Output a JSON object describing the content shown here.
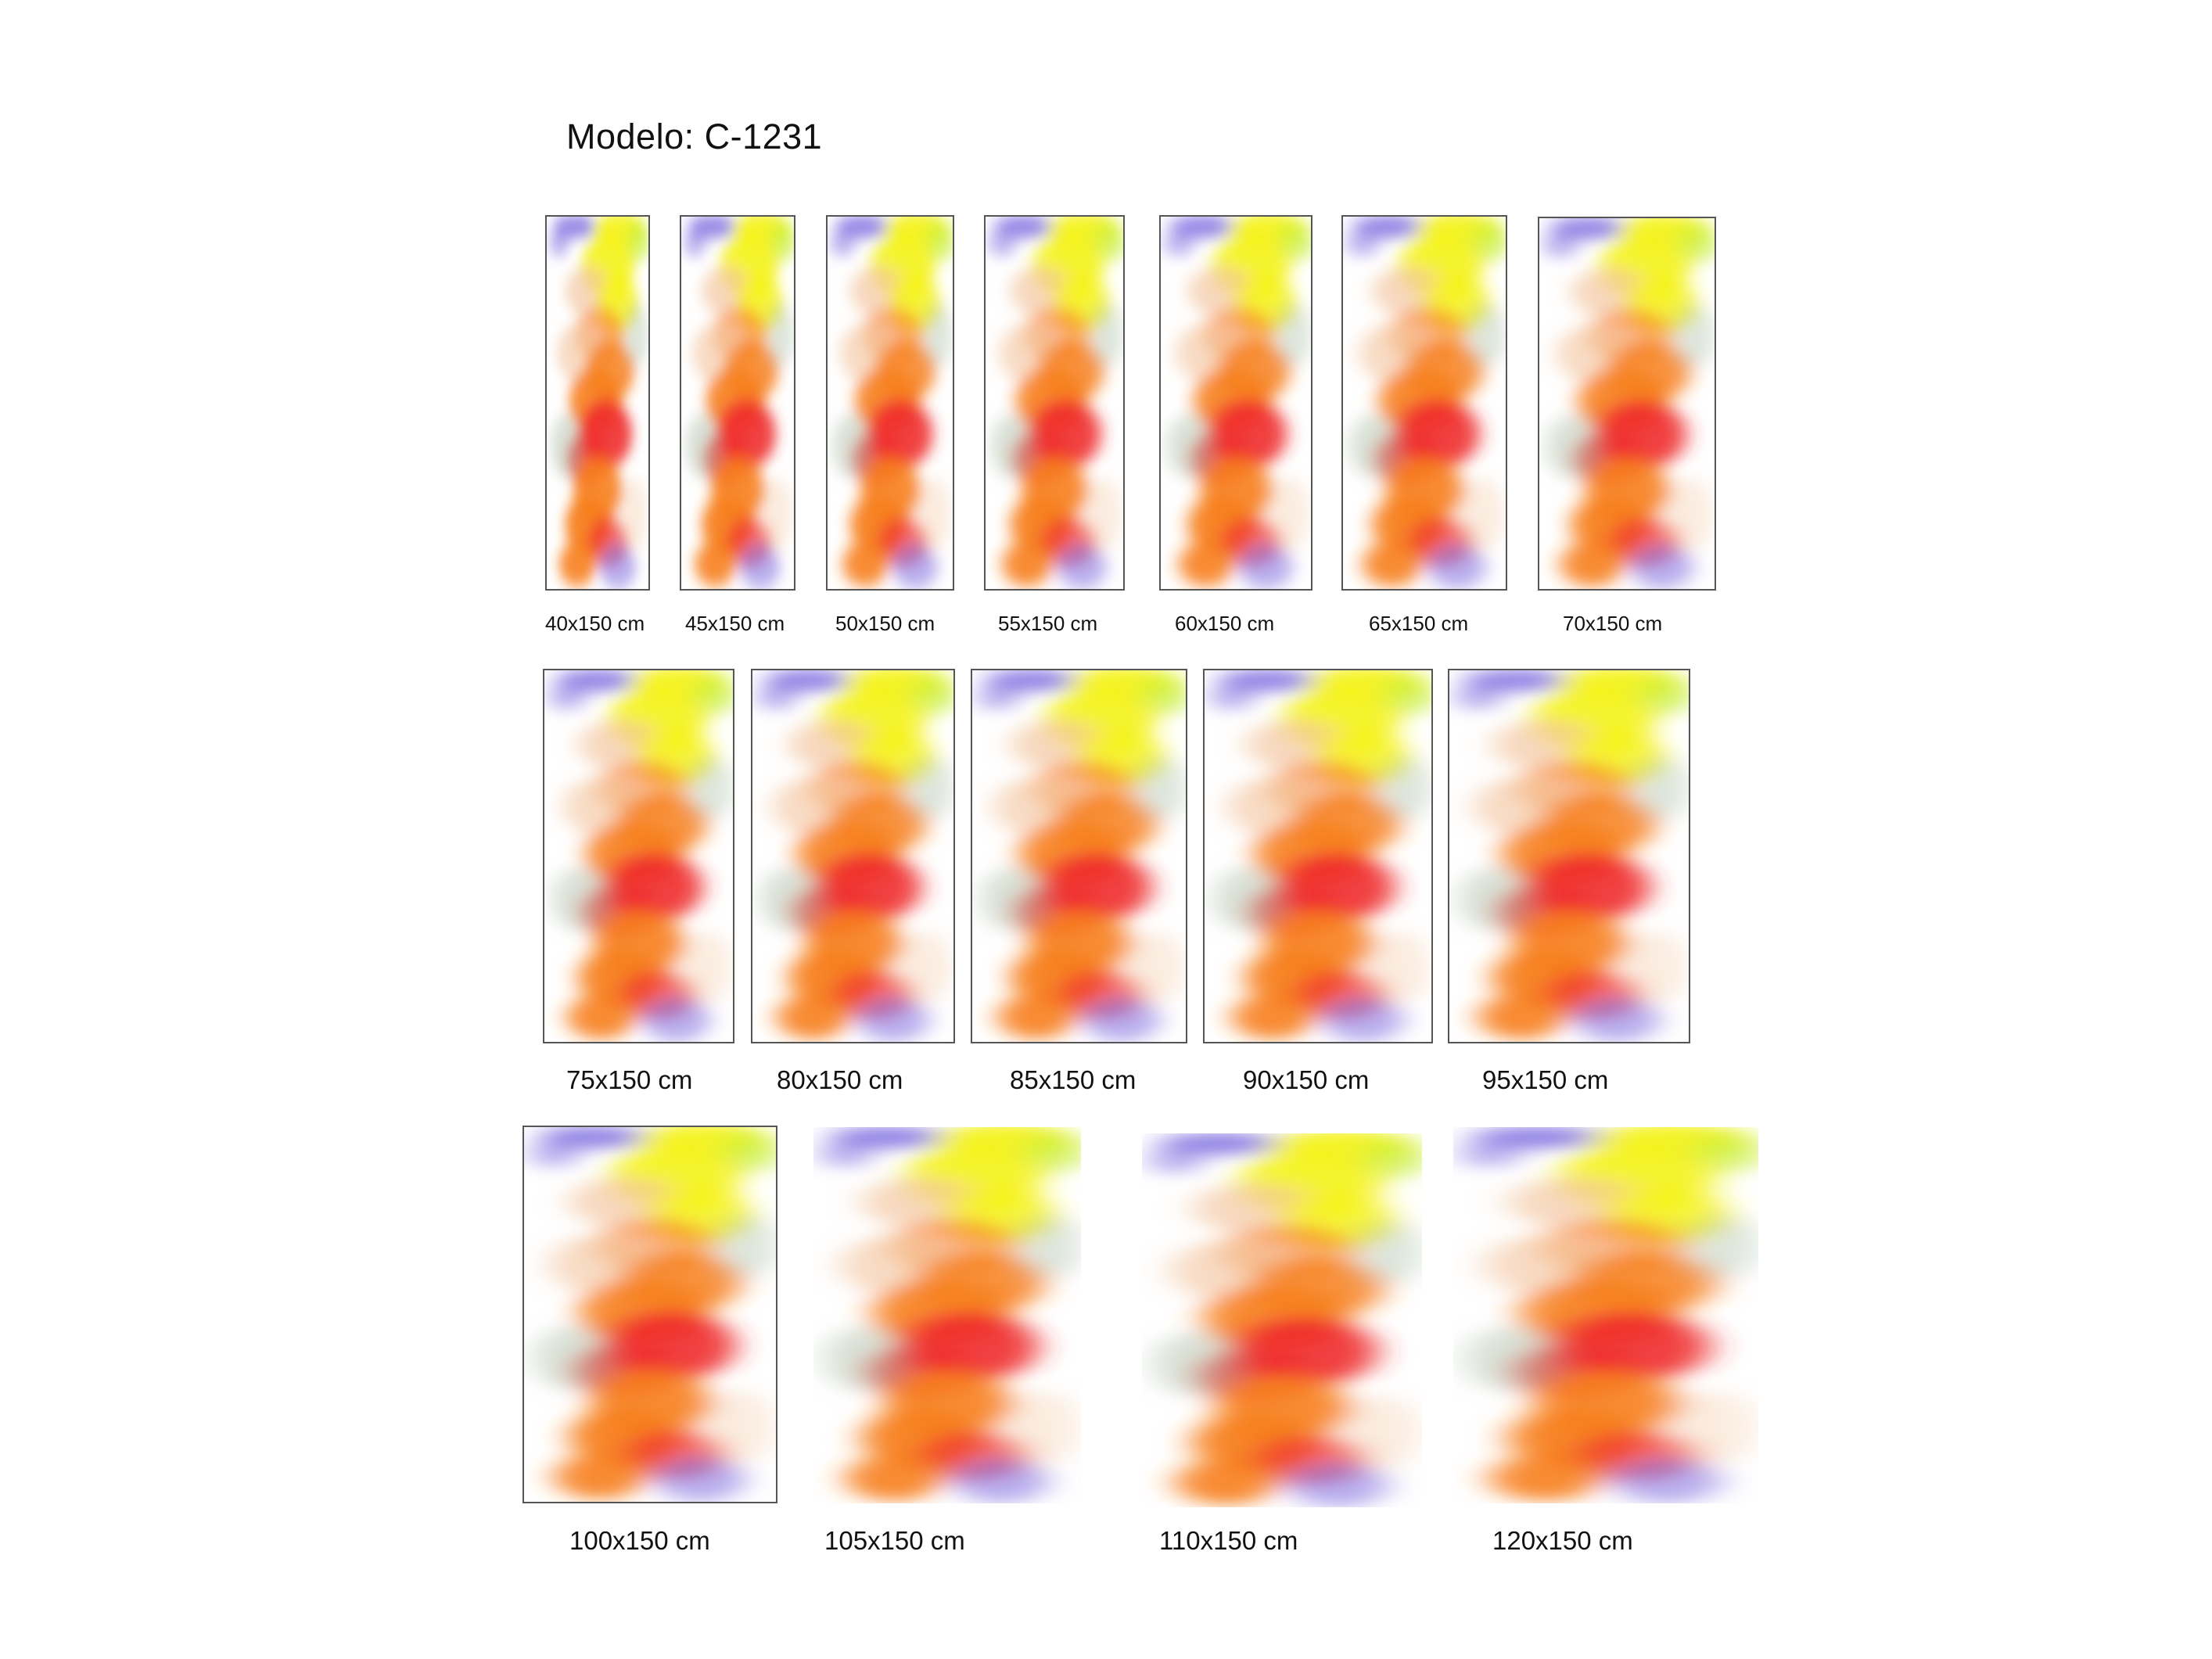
{
  "title": "Modelo: C-1231",
  "colors": {
    "violet": "#7f6fe0",
    "yellow": "#f4f21a",
    "lime": "#c8ee3a",
    "orange": "#f7801e",
    "red": "#f02c2c",
    "peach": "#f4c8a4",
    "sage": "#9fb59a"
  },
  "panels": [
    {
      "label": "40x150 cm"
    },
    {
      "label": "45x150 cm"
    },
    {
      "label": "50x150 cm"
    },
    {
      "label": "55x150 cm"
    },
    {
      "label": "60x150 cm"
    },
    {
      "label": "65x150 cm"
    },
    {
      "label": "70x150 cm"
    },
    {
      "label": "75x150 cm"
    },
    {
      "label": "80x150 cm"
    },
    {
      "label": "85x150 cm"
    },
    {
      "label": "90x150 cm"
    },
    {
      "label": "95x150 cm"
    },
    {
      "label": "100x150 cm"
    },
    {
      "label": "105x150 cm"
    },
    {
      "label": "110x150 cm"
    },
    {
      "label": "120x150 cm"
    }
  ]
}
